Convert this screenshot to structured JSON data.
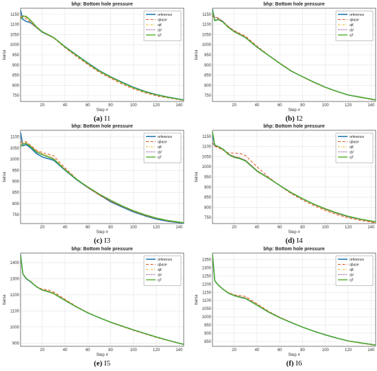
{
  "series_styles": [
    {
      "name": "reference",
      "color": "#1f77b4",
      "dash": "",
      "width": 1.6
    },
    {
      "name": "qbase",
      "color": "#d95319",
      "dash": "4,2.5",
      "width": 1.0
    },
    {
      "name": "qK",
      "color": "#edb120",
      "dash": "3,1.5,1,1.5",
      "width": 1.0
    },
    {
      "name": "qV",
      "color": "#7e2f8e",
      "dash": "1.2,1.2",
      "width": 1.0
    },
    {
      "name": "qT",
      "color": "#4daf2a",
      "dash": "",
      "width": 1.4
    }
  ],
  "chart_data": [
    {
      "type": "line",
      "title": "bhp: Bottom hole pressure",
      "xlabel": "Step #",
      "ylabel": "barsa",
      "xlim": [
        1,
        144
      ],
      "ylim": [
        720,
        1180
      ],
      "xticks": [
        20,
        40,
        60,
        80,
        100,
        120,
        140
      ],
      "yticks": [
        750,
        800,
        850,
        900,
        950,
        1000,
        1050,
        1100,
        1150
      ],
      "legend_position": "top-right",
      "caption": {
        "label": "(a)",
        "name": "I1"
      },
      "x": [
        1,
        3,
        6,
        10,
        15,
        20,
        30,
        40,
        50,
        60,
        70,
        80,
        90,
        100,
        110,
        120,
        130,
        144
      ],
      "series": [
        {
          "name": "reference",
          "values": [
            1170,
            1125,
            1115,
            1108,
            1085,
            1062,
            1035,
            990,
            950,
            910,
            872,
            842,
            815,
            790,
            770,
            754,
            742,
            728
          ]
        },
        {
          "name": "qbase",
          "values": [
            1140,
            1138,
            1128,
            1110,
            1083,
            1063,
            1033,
            985,
            942,
            902,
            864,
            834,
            806,
            782,
            763,
            748,
            738,
            725
          ]
        },
        {
          "name": "qK",
          "values": [
            1135,
            1140,
            1135,
            1115,
            1085,
            1063,
            1035,
            988,
            946,
            905,
            868,
            838,
            811,
            786,
            767,
            752,
            740,
            727
          ]
        },
        {
          "name": "qV",
          "values": [
            1130,
            1141,
            1138,
            1118,
            1087,
            1064,
            1035,
            988,
            947,
            906,
            869,
            839,
            812,
            787,
            768,
            752,
            741,
            727
          ]
        },
        {
          "name": "qT",
          "values": [
            1125,
            1142,
            1140,
            1120,
            1088,
            1065,
            1036,
            989,
            948,
            908,
            870,
            841,
            813,
            788,
            768,
            753,
            741,
            727
          ]
        }
      ]
    },
    {
      "type": "line",
      "title": "bhp: Bottom hole pressure",
      "xlabel": "Step #",
      "ylabel": "barsa",
      "xlim": [
        1,
        144
      ],
      "ylim": [
        720,
        1180
      ],
      "xticks": [
        20,
        40,
        60,
        80,
        100,
        120,
        140
      ],
      "yticks": [
        750,
        800,
        850,
        900,
        950,
        1000,
        1050,
        1100,
        1150
      ],
      "legend_position": "top-right",
      "caption": {
        "label": "(b)",
        "name": "I2"
      },
      "x": [
        1,
        3,
        6,
        10,
        15,
        20,
        30,
        40,
        50,
        60,
        70,
        80,
        90,
        100,
        110,
        120,
        130,
        144
      ],
      "series": [
        {
          "name": "reference",
          "values": [
            1175,
            1120,
            1125,
            1115,
            1085,
            1065,
            1035,
            988,
            948,
            908,
            870,
            842,
            815,
            790,
            770,
            752,
            742,
            728
          ]
        },
        {
          "name": "qbase",
          "values": [
            1145,
            1140,
            1132,
            1115,
            1090,
            1070,
            1042,
            993,
            950,
            910,
            872,
            841,
            813,
            789,
            769,
            752,
            740,
            726
          ]
        },
        {
          "name": "qK",
          "values": [
            1138,
            1135,
            1128,
            1113,
            1088,
            1067,
            1038,
            990,
            948,
            908,
            870,
            841,
            814,
            789,
            769,
            752,
            741,
            727
          ]
        },
        {
          "name": "qV",
          "values": [
            1140,
            1136,
            1130,
            1114,
            1088,
            1067,
            1037,
            990,
            948,
            908,
            870,
            841,
            814,
            789,
            769,
            752,
            741,
            727
          ]
        },
        {
          "name": "qT",
          "values": [
            1170,
            1118,
            1124,
            1112,
            1085,
            1064,
            1035,
            988,
            948,
            908,
            870,
            842,
            815,
            790,
            770,
            752,
            742,
            728
          ]
        }
      ]
    },
    {
      "type": "line",
      "title": "bhp: Bottom hole pressure",
      "xlabel": "Step #",
      "ylabel": "barsa",
      "xlim": [
        1,
        144
      ],
      "ylim": [
        710,
        1130
      ],
      "xticks": [
        20,
        40,
        60,
        80,
        100,
        120,
        140
      ],
      "yticks": [
        750,
        800,
        850,
        900,
        950,
        1000,
        1050,
        1100
      ],
      "legend_position": "top-right",
      "caption": {
        "label": "(c)",
        "name": "I3"
      },
      "x": [
        1,
        3,
        6,
        10,
        15,
        20,
        30,
        40,
        50,
        60,
        70,
        80,
        90,
        100,
        110,
        120,
        130,
        144
      ],
      "series": [
        {
          "name": "reference",
          "values": [
            1120,
            1060,
            1065,
            1050,
            1025,
            1010,
            995,
            950,
            908,
            872,
            840,
            808,
            785,
            762,
            745,
            730,
            720,
            712
          ]
        },
        {
          "name": "qbase",
          "values": [
            1075,
            1080,
            1078,
            1062,
            1040,
            1030,
            1015,
            960,
            912,
            872,
            838,
            810,
            787,
            765,
            747,
            733,
            722,
            713
          ]
        },
        {
          "name": "qK",
          "values": [
            1070,
            1072,
            1075,
            1060,
            1038,
            1025,
            1005,
            955,
            910,
            872,
            840,
            812,
            788,
            765,
            747,
            733,
            722,
            713
          ]
        },
        {
          "name": "qV",
          "values": [
            1065,
            1070,
            1072,
            1058,
            1035,
            1022,
            1002,
            954,
            910,
            873,
            841,
            812,
            788,
            766,
            748,
            734,
            723,
            714
          ]
        },
        {
          "name": "qT",
          "values": [
            1055,
            1068,
            1070,
            1055,
            1032,
            1020,
            1000,
            952,
            910,
            875,
            843,
            815,
            790,
            768,
            750,
            735,
            724,
            714
          ]
        }
      ]
    },
    {
      "type": "line",
      "title": "bhp: Bottom hole pressure",
      "xlabel": "Step #",
      "ylabel": "barsa",
      "xlim": [
        1,
        144
      ],
      "ylim": [
        720,
        1180
      ],
      "xticks": [
        20,
        40,
        60,
        80,
        100,
        120,
        140
      ],
      "yticks": [
        750,
        800,
        850,
        900,
        950,
        1000,
        1050,
        1100,
        1150
      ],
      "legend_position": "top-right",
      "caption": {
        "label": "(d)",
        "name": "I4"
      },
      "x": [
        1,
        3,
        6,
        10,
        15,
        20,
        25,
        30,
        40,
        50,
        60,
        70,
        80,
        90,
        100,
        110,
        120,
        130,
        144
      ],
      "series": [
        {
          "name": "reference",
          "values": [
            1160,
            1105,
            1100,
            1088,
            1062,
            1048,
            1042,
            1030,
            980,
            945,
            908,
            872,
            842,
            815,
            792,
            772,
            755,
            742,
            728
          ]
        },
        {
          "name": "qbase",
          "values": [
            1120,
            1100,
            1095,
            1082,
            1068,
            1068,
            1066,
            1055,
            1000,
            950,
            906,
            868,
            836,
            808,
            784,
            764,
            748,
            736,
            723
          ]
        },
        {
          "name": "qK",
          "values": [
            1120,
            1105,
            1098,
            1085,
            1062,
            1052,
            1045,
            1033,
            982,
            945,
            908,
            872,
            841,
            813,
            789,
            769,
            752,
            740,
            726
          ]
        },
        {
          "name": "qV",
          "values": [
            1118,
            1104,
            1098,
            1085,
            1062,
            1050,
            1043,
            1032,
            981,
            945,
            908,
            872,
            842,
            814,
            790,
            770,
            753,
            741,
            727
          ]
        },
        {
          "name": "qT",
          "values": [
            1175,
            1108,
            1100,
            1088,
            1060,
            1046,
            1040,
            1028,
            978,
            944,
            908,
            873,
            843,
            816,
            793,
            773,
            756,
            743,
            729
          ]
        }
      ]
    },
    {
      "type": "line",
      "title": "bhp: Bottom hole pressure",
      "xlabel": "Step #",
      "ylabel": "barsa",
      "xlim": [
        1,
        144
      ],
      "ylim": [
        880,
        1460
      ],
      "xticks": [
        20,
        40,
        60,
        80,
        100,
        120,
        140
      ],
      "yticks": [
        900,
        1000,
        1100,
        1200,
        1300,
        1400
      ],
      "legend_position": "top-right",
      "caption": {
        "label": "(e)",
        "name": "I5"
      },
      "x": [
        1,
        3,
        6,
        10,
        15,
        20,
        25,
        30,
        40,
        50,
        60,
        70,
        80,
        90,
        100,
        110,
        120,
        130,
        144
      ],
      "series": [
        {
          "name": "reference",
          "values": [
            1450,
            1330,
            1300,
            1280,
            1250,
            1230,
            1220,
            1208,
            1165,
            1125,
            1088,
            1058,
            1030,
            1006,
            982,
            960,
            938,
            918,
            892
          ]
        },
        {
          "name": "qbase",
          "values": [
            1440,
            1330,
            1302,
            1283,
            1252,
            1235,
            1232,
            1218,
            1172,
            1128,
            1090,
            1058,
            1028,
            1003,
            979,
            957,
            935,
            916,
            891
          ]
        },
        {
          "name": "qK",
          "values": [
            1440,
            1330,
            1302,
            1282,
            1251,
            1233,
            1225,
            1212,
            1168,
            1126,
            1089,
            1058,
            1029,
            1005,
            981,
            959,
            937,
            917,
            892
          ]
        },
        {
          "name": "qV",
          "values": [
            1440,
            1330,
            1302,
            1282,
            1251,
            1232,
            1223,
            1210,
            1167,
            1126,
            1089,
            1058,
            1030,
            1005,
            981,
            959,
            937,
            917,
            892
          ]
        },
        {
          "name": "qT",
          "values": [
            1445,
            1332,
            1302,
            1282,
            1250,
            1230,
            1220,
            1208,
            1165,
            1125,
            1088,
            1058,
            1030,
            1006,
            982,
            960,
            938,
            918,
            892
          ]
        }
      ]
    },
    {
      "type": "line",
      "title": "bhp: Bottom hole pressure",
      "xlabel": "Step #",
      "ylabel": "barsa",
      "xlim": [
        1,
        144
      ],
      "ylim": [
        820,
        1390
      ],
      "xticks": [
        20,
        40,
        60,
        80,
        100,
        120,
        140
      ],
      "yticks": [
        850,
        900,
        950,
        1000,
        1050,
        1100,
        1150,
        1200,
        1250,
        1300,
        1350
      ],
      "legend_position": "top-right",
      "caption": {
        "label": "(f)",
        "name": "I6"
      },
      "x": [
        1,
        3,
        6,
        10,
        15,
        20,
        25,
        30,
        40,
        50,
        60,
        70,
        80,
        90,
        100,
        110,
        120,
        130,
        144
      ],
      "series": [
        {
          "name": "reference",
          "values": [
            1380,
            1220,
            1195,
            1170,
            1145,
            1130,
            1120,
            1112,
            1072,
            1030,
            995,
            965,
            937,
            912,
            890,
            870,
            853,
            842,
            828
          ]
        },
        {
          "name": "qbase",
          "values": [
            1370,
            1220,
            1197,
            1172,
            1148,
            1135,
            1130,
            1125,
            1080,
            1035,
            998,
            967,
            938,
            912,
            890,
            869,
            852,
            840,
            826
          ]
        },
        {
          "name": "qK",
          "values": [
            1370,
            1220,
            1196,
            1171,
            1146,
            1133,
            1124,
            1117,
            1075,
            1032,
            996,
            966,
            937,
            912,
            890,
            870,
            853,
            841,
            827
          ]
        },
        {
          "name": "qV",
          "values": [
            1370,
            1220,
            1196,
            1171,
            1146,
            1132,
            1123,
            1116,
            1074,
            1032,
            996,
            966,
            937,
            912,
            890,
            870,
            853,
            841,
            827
          ]
        },
        {
          "name": "qT",
          "values": [
            1385,
            1222,
            1195,
            1170,
            1145,
            1130,
            1120,
            1112,
            1072,
            1030,
            995,
            965,
            937,
            912,
            890,
            870,
            853,
            842,
            828
          ]
        }
      ]
    }
  ]
}
